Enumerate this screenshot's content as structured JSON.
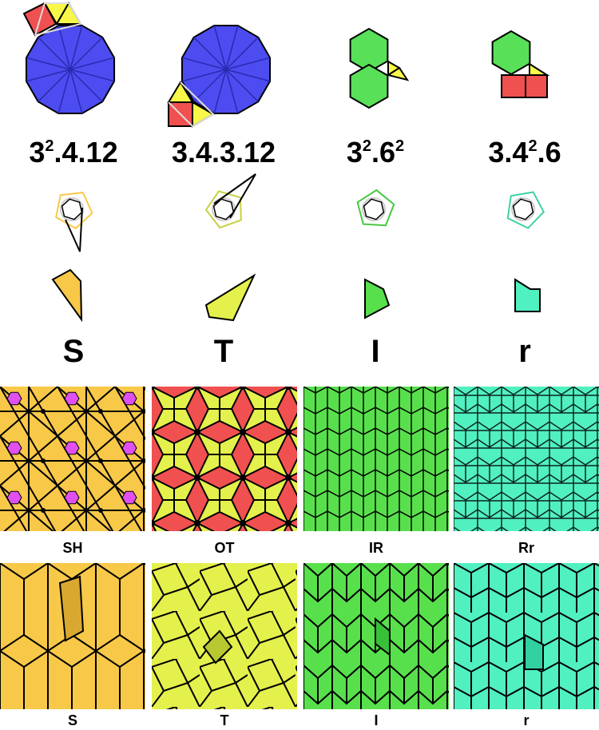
{
  "columns": [
    {
      "title": {
        "a": "3",
        "sup1": "2",
        "b": ".4.12",
        "sup2": ""
      },
      "prototile": "S",
      "pattern_label": "SH",
      "tiling_label": "S",
      "color": "#f8c848"
    },
    {
      "title": {
        "a": "3.4.3.12",
        "sup1": "",
        "b": "",
        "sup2": ""
      },
      "prototile": "T",
      "pattern_label": "OT",
      "tiling_label": "T",
      "color": "#e4f04c"
    },
    {
      "title": {
        "a": "3",
        "sup1": "2",
        "b": ".6",
        "sup2": "2"
      },
      "prototile": "I",
      "pattern_label": "IR",
      "tiling_label": "I",
      "color": "#58e04c"
    },
    {
      "title": {
        "a": "3.4",
        "sup1": "2",
        "b": ".6",
        "sup2": ""
      },
      "prototile": "r",
      "pattern_label": "Rr",
      "tiling_label": "r",
      "color": "#50f0c0"
    }
  ],
  "colors": {
    "dodecagon": "#4c4cf0",
    "square": "#f05050",
    "triangle": "#f8f848",
    "hexagon": "#58e058",
    "pink": "#e050f0"
  }
}
